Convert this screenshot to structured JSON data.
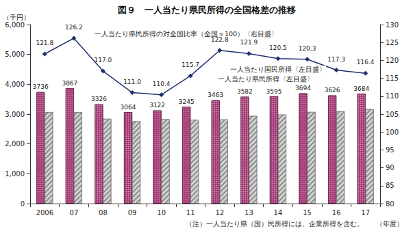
{
  "chart_data": {
    "type": "bar",
    "title": "図９　一人当たり県民所得の全国格差の推移",
    "y_label": "（千円）",
    "x_label": "（年度）",
    "note": "（注）一人当たり県（国）民所得には、企業所得を含む。",
    "categories": [
      "2006",
      "07",
      "08",
      "09",
      "10",
      "11",
      "12",
      "13",
      "14",
      "15",
      "16",
      "17"
    ],
    "ylim": [
      0,
      6000
    ],
    "yticks": [
      0,
      1000,
      2000,
      3000,
      4000,
      5000,
      6000
    ],
    "y2lim": [
      80,
      130
    ],
    "y2ticks": [
      80,
      85,
      90,
      95,
      100,
      105,
      110,
      115,
      120,
      125,
      130
    ],
    "grid": false,
    "series": [
      {
        "name": "一人当たり県民所得〈左目盛〉",
        "type": "bar",
        "color": "#a0306e",
        "data_labels": true,
        "values": [
          3736,
          3867,
          3326,
          3064,
          3122,
          3245,
          3463,
          3582,
          3595,
          3694,
          3626,
          3684
        ]
      },
      {
        "name": "一人当たり国民所得〈左目盛〉",
        "type": "bar",
        "color": "#d4d4d4",
        "values": [
          3067,
          3064,
          2843,
          2760,
          2828,
          2805,
          2820,
          2938,
          2983,
          3071,
          3091,
          3165
        ]
      },
      {
        "name": "一人当たり県民所得の対全国比率（全国＝100）〈右目盛〉",
        "type": "line",
        "axis": "y2",
        "color": "#1f2f6b",
        "marker": "diamond",
        "data_labels": true,
        "values": [
          121.8,
          126.2,
          117.0,
          111.0,
          110.4,
          115.7,
          122.8,
          121.9,
          120.5,
          120.3,
          117.3,
          116.4
        ],
        "value_labels": [
          "121.8",
          "126.2",
          "117.0",
          "111.0",
          "110.4",
          "115.7",
          "122.8",
          "121.9",
          "120.5",
          "120.3",
          "117.3",
          "116.4"
        ]
      }
    ]
  }
}
